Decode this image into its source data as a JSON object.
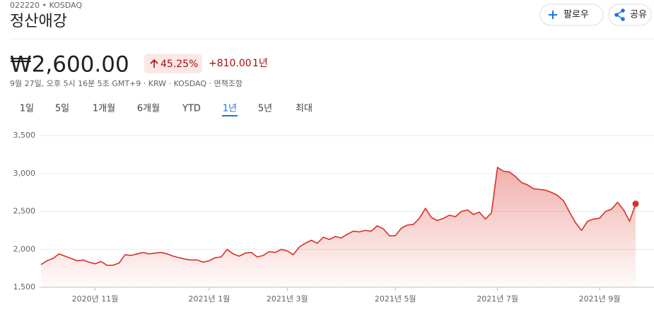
{
  "header": {
    "ticker": "022220 • KOSDAQ",
    "name": "정산애강",
    "follow": "팔로우",
    "share": "공유",
    "price": "₩2,600.00",
    "change_pct": "45.25%",
    "change": "+810.00",
    "period": "1년",
    "timestamp": "9월 27일, 오후 5시 16분 5초 GMT+9 · KRW · KOSDAQ · 면책조항",
    "tabs": [
      "1일",
      "5일",
      "1개월",
      "6개월",
      "YTD",
      "1년",
      "5년",
      "최대"
    ],
    "selected_tab": 5
  },
  "chart_data": {
    "type": "line",
    "color": "#d93025",
    "grid": true,
    "values": [
      1800,
      1850,
      1880,
      1940,
      1910,
      1880,
      1850,
      1860,
      1830,
      1810,
      1840,
      1790,
      1790,
      1820,
      1930,
      1920,
      1940,
      1960,
      1940,
      1950,
      1960,
      1940,
      1910,
      1890,
      1870,
      1860,
      1860,
      1830,
      1850,
      1890,
      1900,
      2000,
      1940,
      1910,
      1950,
      1960,
      1900,
      1920,
      1970,
      1960,
      2000,
      1980,
      1930,
      2030,
      2080,
      2120,
      2080,
      2160,
      2130,
      2170,
      2150,
      2200,
      2240,
      2230,
      2250,
      2240,
      2310,
      2270,
      2180,
      2180,
      2280,
      2320,
      2330,
      2410,
      2540,
      2420,
      2380,
      2410,
      2450,
      2430,
      2500,
      2520,
      2460,
      2490,
      2400,
      2480,
      3080,
      3030,
      3020,
      2960,
      2880,
      2850,
      2800,
      2790,
      2780,
      2750,
      2710,
      2640,
      2490,
      2350,
      2250,
      2370,
      2400,
      2410,
      2500,
      2530,
      2620,
      2520,
      2370,
      2600
    ],
    "ylim": [
      1500,
      3500
    ],
    "yticks": [
      {
        "value": 1500,
        "label": "1,500"
      },
      {
        "value": 2000,
        "label": "2,000"
      },
      {
        "value": 2500,
        "label": "2,500"
      },
      {
        "value": 3000,
        "label": "3,000"
      },
      {
        "value": 3500,
        "label": "3,500"
      }
    ],
    "xticks": [
      {
        "value": 9,
        "label": "2020년 11월"
      },
      {
        "value": 28,
        "label": "2021년 1월"
      },
      {
        "value": 41,
        "label": "2021년 3월"
      },
      {
        "value": 59,
        "label": "2021년 5월"
      },
      {
        "value": 76,
        "label": "2021년 7월"
      },
      {
        "value": 93,
        "label": "2021년 9월"
      }
    ]
  }
}
